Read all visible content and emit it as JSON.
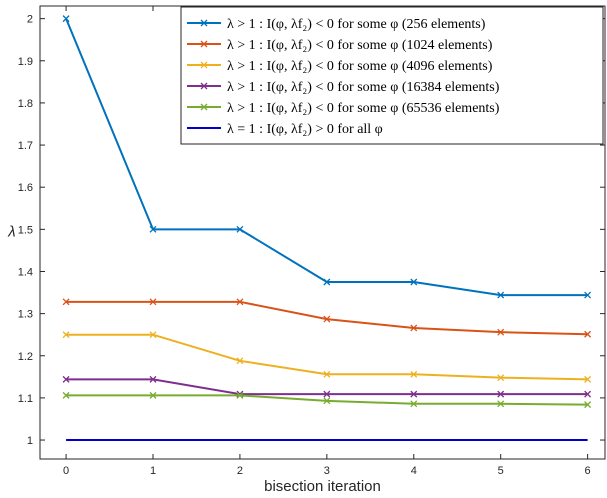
{
  "chart_data": {
    "type": "line",
    "xlabel": "bisection iteration",
    "ylabel": "λ",
    "xlim": [
      -0.3,
      6.2
    ],
    "ylim": [
      0.955,
      2.03
    ],
    "x_ticks": [
      "0",
      "1",
      "2",
      "3",
      "4",
      "5",
      "6"
    ],
    "y_ticks": [
      "1",
      "1.1",
      "1.2",
      "1.3",
      "1.4",
      "1.5",
      "1.6",
      "1.7",
      "1.8",
      "1.9",
      "2"
    ],
    "grid": false,
    "legend_position": "top-right",
    "x": [
      0,
      1,
      2,
      3,
      4,
      5,
      6
    ],
    "series": [
      {
        "name": "λ > 1 : I(φ, λf₂) < 0 for some φ (256 elements)",
        "color": "#0072BD",
        "marker": "x",
        "values": [
          2.0,
          1.5,
          1.5,
          1.375,
          1.375,
          1.344,
          1.344
        ]
      },
      {
        "name": "λ > 1 : I(φ, λf₂) < 0 for some φ (1024 elements)",
        "color": "#D95319",
        "marker": "x",
        "values": [
          1.328,
          1.328,
          1.328,
          1.287,
          1.266,
          1.256,
          1.251
        ]
      },
      {
        "name": "λ > 1 : I(φ, λf₂) < 0 for some φ (4096 elements)",
        "color": "#EDB120",
        "marker": "x",
        "values": [
          1.25,
          1.25,
          1.188,
          1.156,
          1.156,
          1.148,
          1.144
        ]
      },
      {
        "name": "λ > 1 : I(φ, λf₂) < 0 for some φ (16384 elements)",
        "color": "#7E2F8E",
        "marker": "x",
        "values": [
          1.144,
          1.144,
          1.109,
          1.109,
          1.109,
          1.109,
          1.109
        ]
      },
      {
        "name": "λ > 1 : I(φ, λf₂) < 0 for some φ (65536 elements)",
        "color": "#77AC30",
        "marker": "x",
        "values": [
          1.106,
          1.106,
          1.106,
          1.093,
          1.086,
          1.086,
          1.084
        ]
      },
      {
        "name": "λ = 1 : I(φ, λf₂) > 0 for all φ",
        "color": "#0000CC",
        "marker": "none",
        "values": [
          1.0,
          1.0,
          1.0,
          1.0,
          1.0,
          1.0,
          1.0
        ]
      }
    ]
  }
}
